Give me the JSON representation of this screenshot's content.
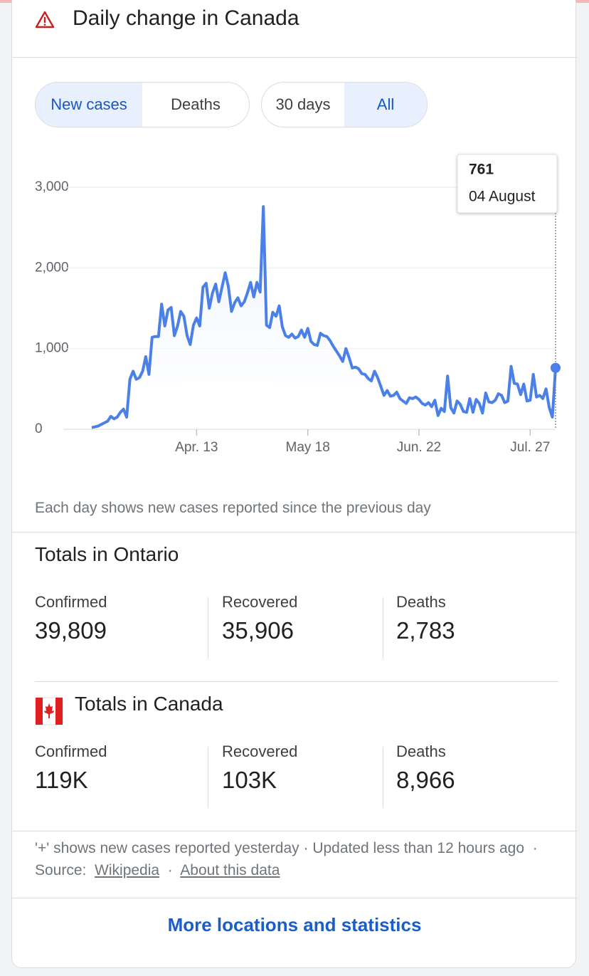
{
  "header": {
    "title": "Daily change in Canada"
  },
  "toggles": {
    "metric": [
      "New cases",
      "Deaths"
    ],
    "range": [
      "30 days",
      "All"
    ]
  },
  "chart_data": {
    "type": "line",
    "x": [
      "03-11",
      "03-12",
      "03-13",
      "03-14",
      "03-15",
      "03-16",
      "03-17",
      "03-18",
      "03-19",
      "03-20",
      "03-21",
      "03-22",
      "03-23",
      "03-24",
      "03-25",
      "03-26",
      "03-27",
      "03-28",
      "03-29",
      "03-30",
      "03-31",
      "04-01",
      "04-02",
      "04-03",
      "04-04",
      "04-05",
      "04-06",
      "04-07",
      "04-08",
      "04-09",
      "04-10",
      "04-11",
      "04-12",
      "04-13",
      "04-14",
      "04-15",
      "04-16",
      "04-17",
      "04-18",
      "04-19",
      "04-20",
      "04-21",
      "04-22",
      "04-23",
      "04-24",
      "04-25",
      "04-26",
      "04-27",
      "04-28",
      "04-29",
      "04-30",
      "05-01",
      "05-02",
      "05-03",
      "05-04",
      "05-05",
      "05-06",
      "05-07",
      "05-08",
      "05-09",
      "05-10",
      "05-11",
      "05-12",
      "05-13",
      "05-14",
      "05-15",
      "05-16",
      "05-17",
      "05-18",
      "05-19",
      "05-20",
      "05-21",
      "05-22",
      "05-23",
      "05-24",
      "05-25",
      "05-26",
      "05-27",
      "05-28",
      "05-29",
      "05-30",
      "05-31",
      "06-01",
      "06-02",
      "06-03",
      "06-04",
      "06-05",
      "06-06",
      "06-07",
      "06-08",
      "06-09",
      "06-10",
      "06-11",
      "06-12",
      "06-13",
      "06-14",
      "06-15",
      "06-16",
      "06-17",
      "06-18",
      "06-19",
      "06-20",
      "06-21",
      "06-22",
      "06-23",
      "06-24",
      "06-25",
      "06-26",
      "06-27",
      "06-28",
      "06-29",
      "06-30",
      "07-01",
      "07-02",
      "07-03",
      "07-04",
      "07-05",
      "07-06",
      "07-07",
      "07-08",
      "07-09",
      "07-10",
      "07-11",
      "07-12",
      "07-13",
      "07-14",
      "07-15",
      "07-16",
      "07-17",
      "07-18",
      "07-19",
      "07-20",
      "07-21",
      "07-22",
      "07-23",
      "07-24",
      "07-25",
      "07-26",
      "07-27",
      "07-28",
      "07-29",
      "07-30",
      "07-31",
      "08-01",
      "08-02",
      "08-03",
      "08-04"
    ],
    "series": [
      {
        "name": "New cases",
        "color": "#4a80e8",
        "values": [
          20,
          30,
          40,
          60,
          80,
          100,
          160,
          130,
          150,
          210,
          250,
          150,
          620,
          720,
          620,
          640,
          720,
          900,
          680,
          1140,
          1150,
          1150,
          1550,
          1280,
          1480,
          1510,
          1160,
          1280,
          1460,
          1400,
          1160,
          1050,
          1290,
          1380,
          1280,
          1760,
          1810,
          1500,
          1690,
          1800,
          1580,
          1760,
          1940,
          1770,
          1460,
          1570,
          1630,
          1530,
          1580,
          1690,
          1820,
          1640,
          1820,
          1700,
          2760,
          1290,
          1260,
          1450,
          1400,
          1530,
          1270,
          1160,
          1140,
          1180,
          1130,
          1150,
          1230,
          1140,
          1250,
          1090,
          1050,
          1040,
          1190,
          1160,
          1150,
          1100,
          1030,
          970,
          910,
          840,
          1000,
          890,
          760,
          770,
          750,
          690,
          680,
          630,
          600,
          720,
          640,
          530,
          420,
          480,
          410,
          420,
          460,
          380,
          350,
          320,
          390,
          380,
          400,
          370,
          320,
          300,
          330,
          280,
          360,
          170,
          260,
          220,
          660,
          270,
          200,
          350,
          310,
          220,
          210,
          380,
          210,
          370,
          320,
          200,
          450,
          340,
          330,
          360,
          440,
          420,
          330,
          350,
          780,
          570,
          560,
          430,
          560,
          350,
          360,
          680,
          400,
          420,
          380,
          500,
          270,
          150,
          761
        ]
      }
    ],
    "ylim": [
      0,
      3000
    ],
    "yticks": [
      0,
      {
        "value": 1000,
        "label": "1,000"
      },
      {
        "value": 2000,
        "label": "2,000"
      },
      {
        "value": 3000,
        "label": "3,000"
      }
    ],
    "xticks": [
      {
        "value": "04-13",
        "label": "Apr. 13"
      },
      {
        "value": "05-18",
        "label": "May 18"
      },
      {
        "value": "06-22",
        "label": "Jun. 22"
      },
      {
        "value": "07-27",
        "label": "Jul. 27"
      }
    ],
    "grid": true,
    "tooltip_date": "04 August",
    "caption": "Each day shows new cases reported since the previous day"
  },
  "ontario": {
    "title": "Totals in Ontario",
    "stats": [
      {
        "label": "Confirmed",
        "value": "39,809"
      },
      {
        "label": "Recovered",
        "value": "35,906"
      },
      {
        "label": "Deaths",
        "value": "2,783"
      }
    ]
  },
  "canada": {
    "title": "Totals in Canada",
    "stats": [
      {
        "label": "Confirmed",
        "value": "119K"
      },
      {
        "label": "Recovered",
        "value": "103K"
      },
      {
        "label": "Deaths",
        "value": "8,966"
      }
    ]
  },
  "footer": {
    "note": "'+' shows new cases reported yesterday",
    "separator": "·",
    "updated": "Updated less than 12 hours ago",
    "source": "Source:",
    "source_link": "Wikipedia",
    "about_link": "About this data"
  },
  "more_link": "More locations and statistics"
}
